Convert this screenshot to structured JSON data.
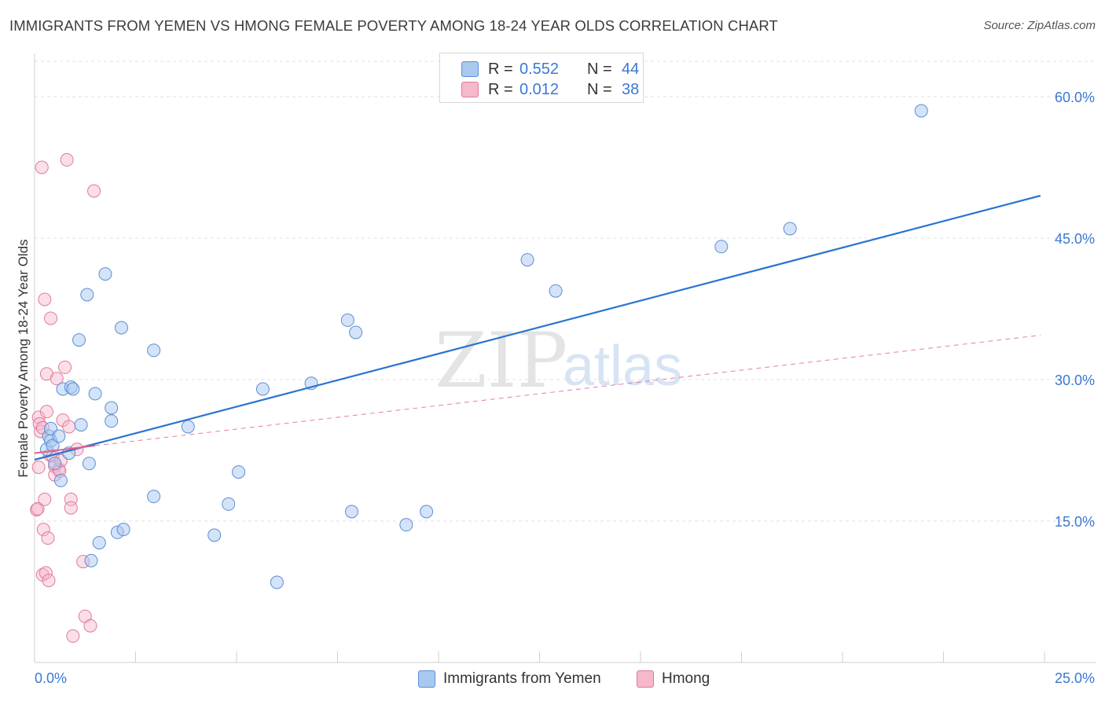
{
  "header": {
    "title": "IMMIGRANTS FROM YEMEN VS HMONG FEMALE POVERTY AMONG 18-24 YEAR OLDS CORRELATION CHART",
    "source": "Source: ZipAtlas.com"
  },
  "watermark": {
    "zip": "ZIP",
    "atlas": "atlas"
  },
  "legend": {
    "rows": [
      {
        "r_label": "R =",
        "r_value": "0.552",
        "n_label": "N =",
        "n_value": "44"
      },
      {
        "r_label": "R =",
        "r_value": "0.012",
        "n_label": "N =",
        "n_value": "38"
      }
    ]
  },
  "bottom_legend": {
    "series1": "Immigrants from Yemen",
    "series2": "Hmong"
  },
  "colors": {
    "yemen_fill": "#a9c8f0",
    "yemen_stroke": "#5b8fd6",
    "yemen_line": "#2b73d0",
    "hmong_fill": "#f6b8cb",
    "hmong_stroke": "#e07a9b",
    "hmong_line": "#e0608a",
    "tick_label": "#3a78d4",
    "grid": "#e2e2e2"
  },
  "chart_data": {
    "type": "scatter",
    "title": "IMMIGRANTS FROM YEMEN VS HMONG FEMALE POVERTY AMONG 18-24 YEAR OLDS CORRELATION CHART",
    "xlabel": "",
    "ylabel": "Female Poverty Among 18-24 Year Olds",
    "xlim": [
      0,
      25
    ],
    "ylim": [
      0,
      64
    ],
    "x_tick_labels": [
      "0.0%",
      "25.0%"
    ],
    "y_ticks": [
      15,
      30,
      45,
      60
    ],
    "y_tick_labels": [
      "15.0%",
      "30.0%",
      "45.0%",
      "60.0%"
    ],
    "grid": true,
    "legend_position": "top-center",
    "series": [
      {
        "name": "Immigrants from Yemen",
        "R": 0.552,
        "N": 44,
        "trend": {
          "x": [
            0.0,
            24.9
          ],
          "y": [
            21.5,
            49.5
          ],
          "style": "solid"
        },
        "points": [
          [
            0.3,
            22.6
          ],
          [
            0.35,
            24.0
          ],
          [
            0.4,
            23.5
          ],
          [
            0.4,
            24.8
          ],
          [
            0.45,
            23.0
          ],
          [
            0.5,
            21.1
          ],
          [
            0.6,
            24.0
          ],
          [
            0.65,
            19.3
          ],
          [
            0.7,
            29.0
          ],
          [
            0.85,
            22.2
          ],
          [
            0.9,
            29.2
          ],
          [
            0.95,
            29.0
          ],
          [
            1.1,
            34.2
          ],
          [
            1.15,
            25.2
          ],
          [
            1.3,
            39.0
          ],
          [
            1.35,
            21.1
          ],
          [
            1.4,
            10.8
          ],
          [
            1.5,
            28.5
          ],
          [
            1.6,
            12.7
          ],
          [
            1.75,
            41.2
          ],
          [
            1.9,
            27.0
          ],
          [
            1.9,
            25.6
          ],
          [
            2.05,
            13.8
          ],
          [
            2.15,
            35.5
          ],
          [
            2.2,
            14.1
          ],
          [
            2.95,
            33.1
          ],
          [
            2.95,
            17.6
          ],
          [
            3.8,
            25.0
          ],
          [
            4.45,
            13.5
          ],
          [
            4.8,
            16.8
          ],
          [
            5.05,
            20.2
          ],
          [
            5.65,
            29.0
          ],
          [
            6.0,
            8.5
          ],
          [
            6.85,
            29.6
          ],
          [
            7.75,
            36.3
          ],
          [
            7.85,
            16.0
          ],
          [
            7.95,
            35.0
          ],
          [
            9.2,
            14.6
          ],
          [
            9.7,
            16.0
          ],
          [
            12.2,
            42.7
          ],
          [
            12.9,
            39.4
          ],
          [
            17.0,
            44.1
          ],
          [
            18.7,
            46.0
          ],
          [
            21.95,
            58.5
          ]
        ]
      },
      {
        "name": "Hmong",
        "R": 0.012,
        "N": 38,
        "trend_solid": {
          "x": [
            0.0,
            1.5
          ],
          "y": [
            22.2,
            23.0
          ],
          "style": "solid"
        },
        "trend": {
          "x": [
            1.5,
            24.9
          ],
          "y": [
            23.0,
            34.7
          ],
          "style": "dashed"
        },
        "points": [
          [
            0.05,
            16.2
          ],
          [
            0.08,
            16.3
          ],
          [
            0.1,
            20.7
          ],
          [
            0.1,
            26.0
          ],
          [
            0.12,
            25.3
          ],
          [
            0.15,
            24.5
          ],
          [
            0.18,
            52.5
          ],
          [
            0.2,
            9.3
          ],
          [
            0.22,
            14.1
          ],
          [
            0.25,
            38.5
          ],
          [
            0.25,
            17.3
          ],
          [
            0.28,
            9.5
          ],
          [
            0.3,
            26.6
          ],
          [
            0.3,
            30.6
          ],
          [
            0.33,
            13.2
          ],
          [
            0.35,
            8.7
          ],
          [
            0.38,
            22.0
          ],
          [
            0.4,
            36.5
          ],
          [
            0.45,
            21.9
          ],
          [
            0.5,
            19.9
          ],
          [
            0.5,
            20.8
          ],
          [
            0.55,
            30.1
          ],
          [
            0.6,
            20.5
          ],
          [
            0.62,
            20.3
          ],
          [
            0.65,
            21.4
          ],
          [
            0.7,
            25.7
          ],
          [
            0.75,
            31.3
          ],
          [
            0.8,
            53.3
          ],
          [
            0.85,
            25.0
          ],
          [
            0.9,
            17.3
          ],
          [
            0.9,
            16.4
          ],
          [
            0.95,
            2.8
          ],
          [
            1.05,
            22.6
          ],
          [
            1.2,
            10.7
          ],
          [
            1.25,
            4.9
          ],
          [
            1.38,
            3.9
          ],
          [
            1.47,
            50.0
          ],
          [
            0.2,
            24.9
          ]
        ]
      }
    ]
  }
}
